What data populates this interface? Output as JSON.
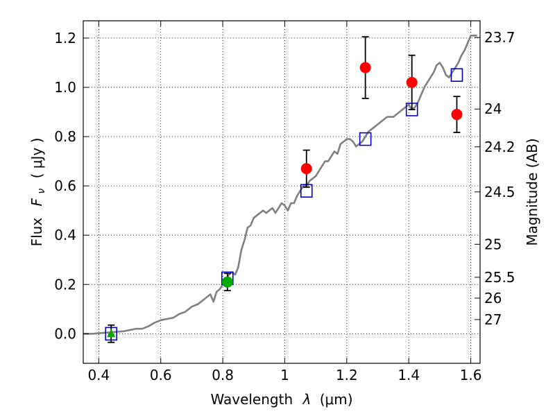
{
  "chart_data": {
    "type": "scatter",
    "xlabel_text": "Wavelength",
    "xlabel_symbol": "λ",
    "xlabel_unit": "(μm)",
    "ylabel_text": "Flux",
    "ylabel_symbol": "F",
    "ylabel_subscript": "ν",
    "ylabel_unit": "( μJy )",
    "y2label": "Magnitude (AB)",
    "xlim": [
      0.35,
      1.63
    ],
    "ylim": [
      -0.12,
      1.27
    ],
    "grid": true,
    "x_ticks": [
      0.4,
      0.6,
      0.8,
      1.0,
      1.2,
      1.4,
      1.6
    ],
    "x_tick_labels": [
      "0.4",
      "0.6",
      "0.8",
      "1",
      "1.2",
      "1.4",
      "1.6"
    ],
    "y_ticks": [
      0.0,
      0.2,
      0.4,
      0.6,
      0.8,
      1.0,
      1.2
    ],
    "y_tick_labels": [
      "0.0",
      "0.2",
      "0.4",
      "0.6",
      "0.8",
      "1.0",
      "1.2"
    ],
    "mag_ticks": [
      {
        "label": "23.7",
        "mag": 23.7
      },
      {
        "label": "24",
        "mag": 24.0
      },
      {
        "label": "24.2",
        "mag": 24.2
      },
      {
        "label": "24.5",
        "mag": 24.5
      },
      {
        "label": "25",
        "mag": 25.0
      },
      {
        "label": "25.5",
        "mag": 25.5
      },
      {
        "label": "26",
        "mag": 26.0
      },
      {
        "label": "27",
        "mag": 27.0
      }
    ],
    "model_spectrum": {
      "color": "#808080",
      "points": [
        [
          0.35,
          0.0
        ],
        [
          0.38,
          0.0
        ],
        [
          0.4,
          0.002
        ],
        [
          0.42,
          0.004
        ],
        [
          0.44,
          0.006
        ],
        [
          0.46,
          0.008
        ],
        [
          0.48,
          0.01
        ],
        [
          0.5,
          0.015
        ],
        [
          0.52,
          0.02
        ],
        [
          0.54,
          0.02
        ],
        [
          0.56,
          0.03
        ],
        [
          0.58,
          0.045
        ],
        [
          0.6,
          0.055
        ],
        [
          0.62,
          0.06
        ],
        [
          0.64,
          0.065
        ],
        [
          0.66,
          0.08
        ],
        [
          0.68,
          0.09
        ],
        [
          0.7,
          0.11
        ],
        [
          0.72,
          0.12
        ],
        [
          0.74,
          0.14
        ],
        [
          0.75,
          0.15
        ],
        [
          0.76,
          0.16
        ],
        [
          0.77,
          0.13
        ],
        [
          0.78,
          0.17
        ],
        [
          0.79,
          0.18
        ],
        [
          0.8,
          0.2
        ],
        [
          0.81,
          0.22
        ],
        [
          0.82,
          0.24
        ],
        [
          0.83,
          0.25
        ],
        [
          0.84,
          0.24
        ],
        [
          0.85,
          0.27
        ],
        [
          0.86,
          0.34
        ],
        [
          0.87,
          0.38
        ],
        [
          0.88,
          0.43
        ],
        [
          0.89,
          0.44
        ],
        [
          0.9,
          0.47
        ],
        [
          0.92,
          0.49
        ],
        [
          0.93,
          0.5
        ],
        [
          0.94,
          0.49
        ],
        [
          0.95,
          0.5
        ],
        [
          0.96,
          0.51
        ],
        [
          0.97,
          0.49
        ],
        [
          0.98,
          0.51
        ],
        [
          0.99,
          0.53
        ],
        [
          1.0,
          0.52
        ],
        [
          1.01,
          0.5
        ],
        [
          1.02,
          0.53
        ],
        [
          1.03,
          0.53
        ],
        [
          1.04,
          0.56
        ],
        [
          1.05,
          0.58
        ],
        [
          1.06,
          0.6
        ],
        [
          1.07,
          0.6
        ],
        [
          1.08,
          0.62
        ],
        [
          1.09,
          0.63
        ],
        [
          1.1,
          0.64
        ],
        [
          1.11,
          0.66
        ],
        [
          1.12,
          0.68
        ],
        [
          1.13,
          0.7
        ],
        [
          1.14,
          0.7
        ],
        [
          1.15,
          0.72
        ],
        [
          1.16,
          0.74
        ],
        [
          1.17,
          0.73
        ],
        [
          1.18,
          0.77
        ],
        [
          1.19,
          0.78
        ],
        [
          1.2,
          0.79
        ],
        [
          1.21,
          0.79
        ],
        [
          1.22,
          0.78
        ],
        [
          1.23,
          0.76
        ],
        [
          1.24,
          0.77
        ],
        [
          1.25,
          0.78
        ],
        [
          1.26,
          0.8
        ],
        [
          1.27,
          0.82
        ],
        [
          1.28,
          0.83
        ],
        [
          1.29,
          0.84
        ],
        [
          1.3,
          0.85
        ],
        [
          1.31,
          0.86
        ],
        [
          1.32,
          0.87
        ],
        [
          1.33,
          0.88
        ],
        [
          1.34,
          0.88
        ],
        [
          1.35,
          0.88
        ],
        [
          1.36,
          0.89
        ],
        [
          1.37,
          0.9
        ],
        [
          1.38,
          0.91
        ],
        [
          1.39,
          0.92
        ],
        [
          1.4,
          0.93
        ],
        [
          1.41,
          0.91
        ],
        [
          1.42,
          0.92
        ],
        [
          1.43,
          0.94
        ],
        [
          1.44,
          0.97
        ],
        [
          1.45,
          1.0
        ],
        [
          1.46,
          1.02
        ],
        [
          1.47,
          1.04
        ],
        [
          1.48,
          1.06
        ],
        [
          1.49,
          1.09
        ],
        [
          1.5,
          1.1
        ],
        [
          1.51,
          1.08
        ],
        [
          1.52,
          1.05
        ],
        [
          1.53,
          1.04
        ],
        [
          1.54,
          1.06
        ],
        [
          1.55,
          1.08
        ],
        [
          1.56,
          1.1
        ],
        [
          1.57,
          1.13
        ],
        [
          1.58,
          1.15
        ],
        [
          1.59,
          1.18
        ],
        [
          1.6,
          1.21
        ],
        [
          1.61,
          1.21
        ],
        [
          1.62,
          1.21
        ]
      ]
    },
    "model_points": {
      "marker": "square",
      "color": "#0000cc",
      "points": [
        [
          0.44,
          0.0
        ],
        [
          0.815,
          0.225
        ],
        [
          1.07,
          0.58
        ],
        [
          1.26,
          0.79
        ],
        [
          1.41,
          0.91
        ],
        [
          1.555,
          1.05
        ]
      ]
    },
    "observed_red": {
      "marker": "circle",
      "color": "#ff0000",
      "points": [
        {
          "x": 1.07,
          "y": 0.67,
          "err": 0.075
        },
        {
          "x": 1.26,
          "y": 1.08,
          "err": 0.125
        },
        {
          "x": 1.41,
          "y": 1.02,
          "err": 0.11
        },
        {
          "x": 1.555,
          "y": 0.89,
          "err": 0.073
        }
      ]
    },
    "observed_green": {
      "marker": "circle",
      "color": "#00aa00",
      "points": [
        {
          "x": 0.815,
          "y": 0.21,
          "err": 0.035
        }
      ]
    },
    "upper_limit_triangle": {
      "marker": "triangle",
      "color": "#00aa00",
      "points": [
        {
          "x": 0.44,
          "y": 0.0,
          "err": 0.035
        }
      ]
    }
  }
}
